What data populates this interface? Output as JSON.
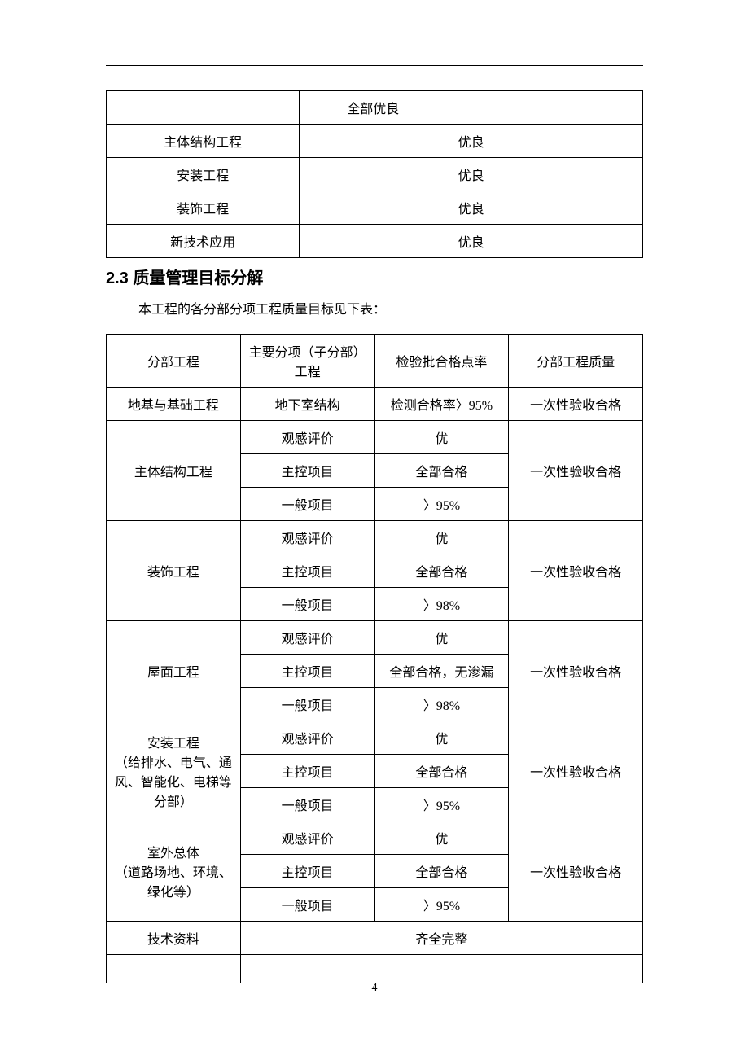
{
  "table1": {
    "rows": [
      {
        "label": "",
        "value": "全部优良",
        "offset": true
      },
      {
        "label": "主体结构工程",
        "value": "优良"
      },
      {
        "label": "安装工程",
        "value": "优良"
      },
      {
        "label": "装饰工程",
        "value": "优良"
      },
      {
        "label": "新技术应用",
        "value": "优良"
      }
    ]
  },
  "heading": "2.3 质量管理目标分解",
  "intro": "本工程的各分部分项工程质量目标见下表：",
  "table2": {
    "header": {
      "c1": "分部工程",
      "c2": "主要分项（子分部）工程",
      "c3": "检验批合格点率",
      "c4": "分部工程质量"
    },
    "groups": [
      {
        "name": "地基与基础工程",
        "quality": "一次性验收合格",
        "rows": [
          {
            "item": "地下室结构",
            "rate": "检测合格率〉95%"
          }
        ]
      },
      {
        "name": "主体结构工程",
        "quality": "一次性验收合格",
        "rows": [
          {
            "item": "观感评价",
            "rate": "优"
          },
          {
            "item": "主控项目",
            "rate": "全部合格"
          },
          {
            "item": "一般项目",
            "rate": "〉95%"
          }
        ]
      },
      {
        "name": "装饰工程",
        "quality": "一次性验收合格",
        "rows": [
          {
            "item": "观感评价",
            "rate": "优"
          },
          {
            "item": "主控项目",
            "rate": "全部合格"
          },
          {
            "item": "一般项目",
            "rate": "〉98%"
          }
        ]
      },
      {
        "name": "屋面工程",
        "quality": "一次性验收合格",
        "rows": [
          {
            "item": "观感评价",
            "rate": "优"
          },
          {
            "item": "主控项目",
            "rate": "全部合格，无渗漏"
          },
          {
            "item": "一般项目",
            "rate": "〉98%"
          }
        ]
      },
      {
        "name": "安装工程\n（给排水、电气、通风、智能化、电梯等分部）",
        "quality": "一次性验收合格",
        "rows": [
          {
            "item": "观感评价",
            "rate": "优"
          },
          {
            "item": "主控项目",
            "rate": "全部合格"
          },
          {
            "item": "一般项目",
            "rate": "〉95%"
          }
        ]
      },
      {
        "name": "室外总体\n（道路场地、环境、绿化等）",
        "quality": "一次性验收合格",
        "rows": [
          {
            "item": "观感评价",
            "rate": "优"
          },
          {
            "item": "主控项目",
            "rate": "全部合格"
          },
          {
            "item": "一般项目",
            "rate": "〉95%"
          }
        ]
      }
    ],
    "footer_row": {
      "name": "技术资料",
      "value": "齐全完整"
    },
    "empty_row": true
  },
  "page_number": "4"
}
